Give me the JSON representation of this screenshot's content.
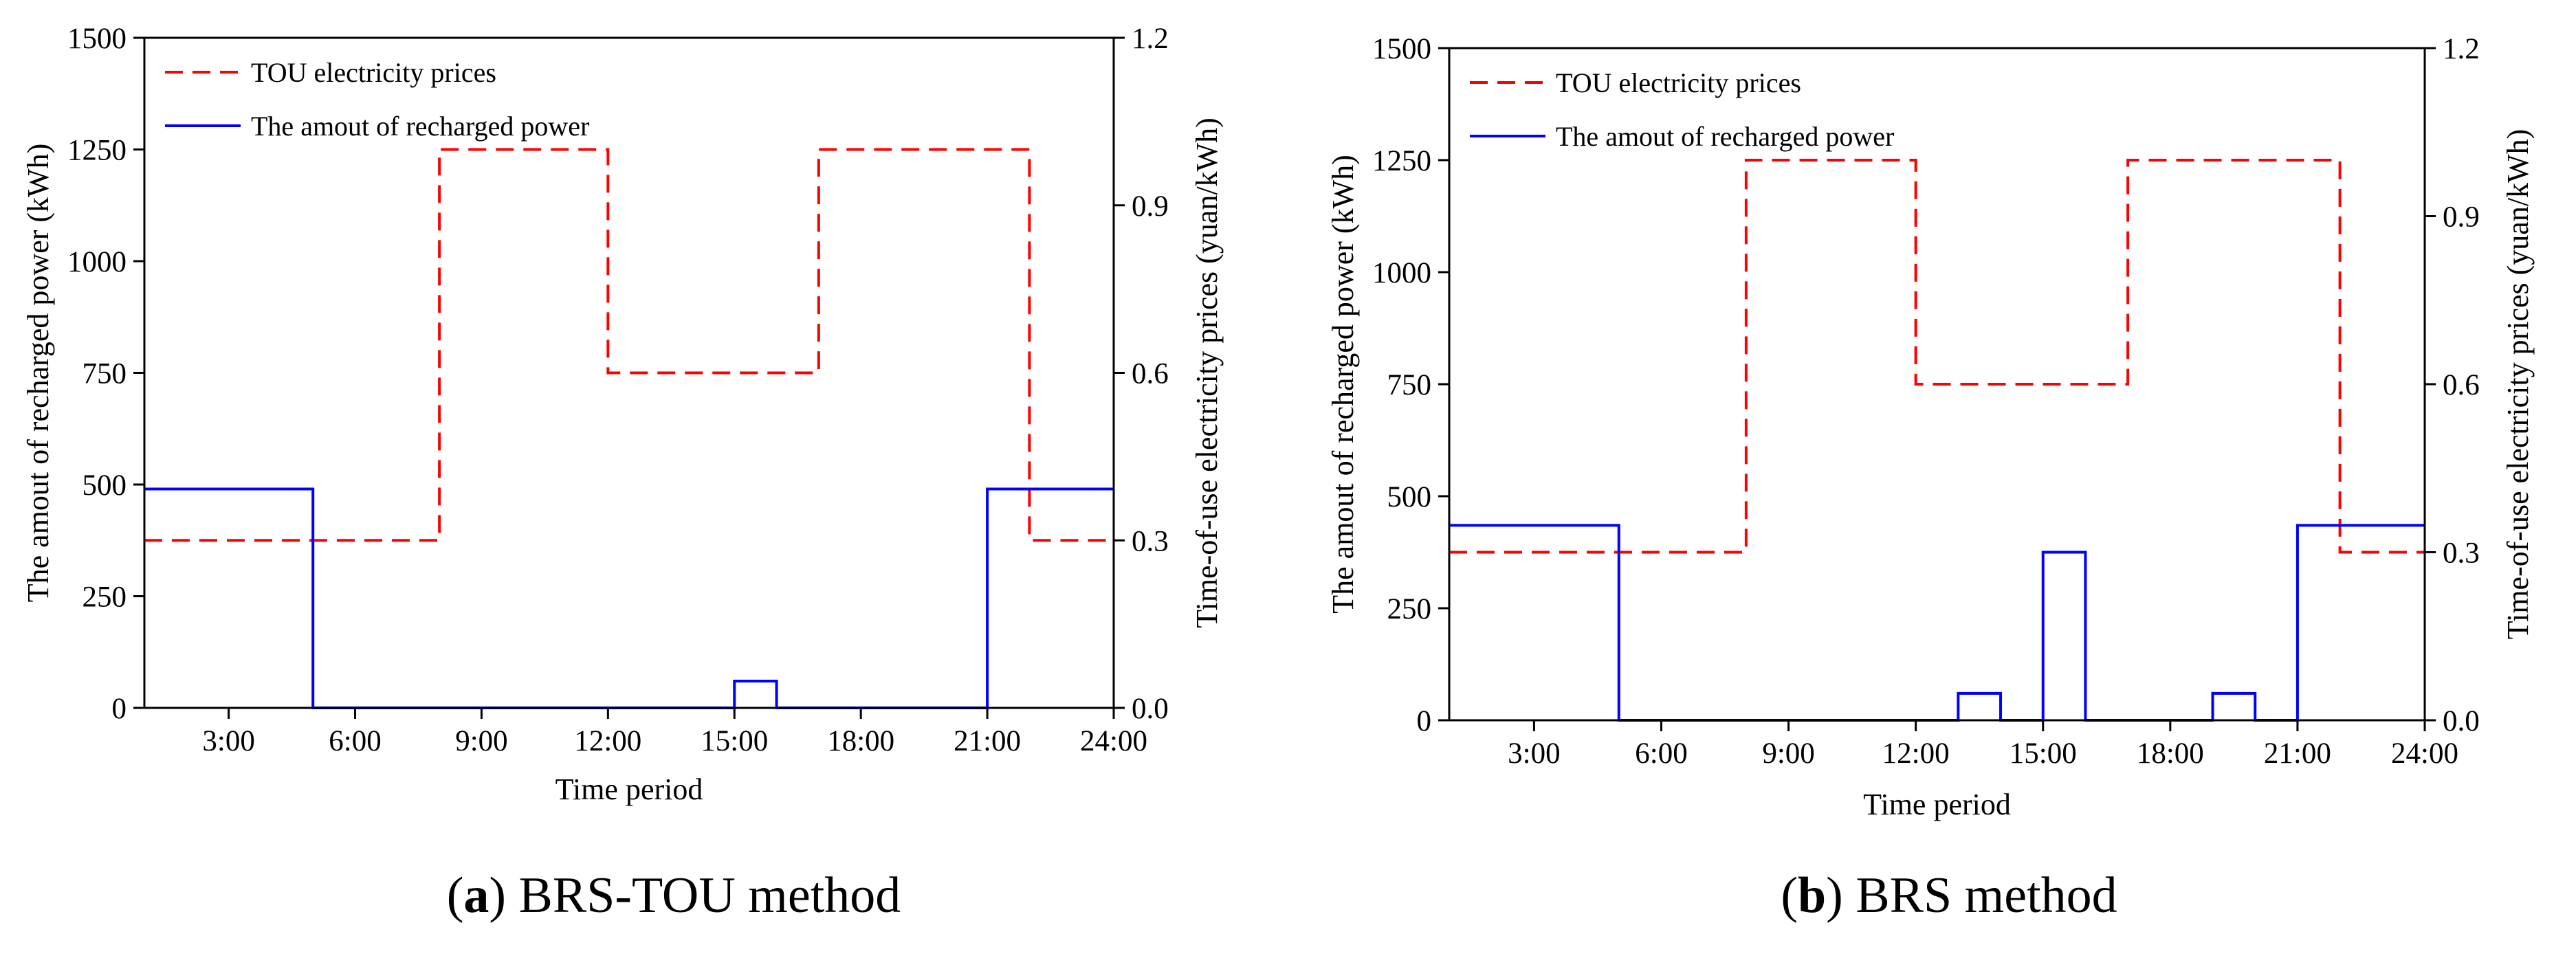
{
  "chart_data": [
    {
      "type": "line",
      "id": "a",
      "caption_letter": "a",
      "caption_text": "BRS-TOU method",
      "xlabel": "Time period",
      "ylabel": "The amout of recharged power (kWh)",
      "ylabel_right": "Time-of-use electricity prices (yuan/kWh)",
      "xlim": [
        1,
        24
      ],
      "ylim": [
        0,
        1500
      ],
      "ylim_right": [
        0,
        1.2
      ],
      "xticks": [
        3,
        6,
        9,
        12,
        15,
        18,
        21,
        24
      ],
      "xtick_labels": [
        "3:00",
        "6:00",
        "9:00",
        "12:00",
        "15:00",
        "18:00",
        "21:00",
        "24:00"
      ],
      "yticks": [
        0,
        250,
        500,
        750,
        1000,
        1250,
        1500
      ],
      "ytick_labels": [
        "0",
        "250",
        "500",
        "750",
        "1000",
        "1250",
        "1500"
      ],
      "yticks_right": [
        0.0,
        0.3,
        0.6,
        0.9,
        1.2
      ],
      "ytick_labels_right": [
        "0.0",
        "0.3",
        "0.6",
        "0.9",
        "1.2"
      ],
      "legend_position": "top-left",
      "series": [
        {
          "name": "TOU electricity prices",
          "axis": "right",
          "style": "dashed",
          "color": "#ff0000",
          "step_x": [
            1,
            8,
            12,
            17,
            22,
            24
          ],
          "step_values": [
            0.3,
            1.0,
            0.6,
            1.0,
            0.3
          ]
        },
        {
          "name": "The amout of recharged power",
          "axis": "left",
          "style": "solid",
          "color": "#0000ff",
          "step_x": [
            1,
            5,
            15,
            16,
            21,
            24
          ],
          "step_values": [
            490,
            0,
            60,
            0,
            490
          ]
        }
      ]
    },
    {
      "type": "line",
      "id": "b",
      "caption_letter": "b",
      "caption_text": "BRS method",
      "xlabel": "Time period",
      "ylabel": "The amout of recharged power (kWh)",
      "ylabel_right": "Time-of-use electricity prices (yuan/kWh)",
      "xlim": [
        1,
        24
      ],
      "ylim": [
        0,
        1500
      ],
      "ylim_right": [
        0,
        1.2
      ],
      "xticks": [
        3,
        6,
        9,
        12,
        15,
        18,
        21,
        24
      ],
      "xtick_labels": [
        "3:00",
        "6:00",
        "9:00",
        "12:00",
        "15:00",
        "18:00",
        "21:00",
        "24:00"
      ],
      "yticks": [
        0,
        250,
        500,
        750,
        1000,
        1250,
        1500
      ],
      "ytick_labels": [
        "0",
        "250",
        "500",
        "750",
        "1000",
        "1250",
        "1500"
      ],
      "yticks_right": [
        0.0,
        0.3,
        0.6,
        0.9,
        1.2
      ],
      "ytick_labels_right": [
        "0.0",
        "0.3",
        "0.6",
        "0.9",
        "1.2"
      ],
      "legend_position": "top-left",
      "series": [
        {
          "name": "TOU electricity prices",
          "axis": "right",
          "style": "dashed",
          "color": "#ff0000",
          "step_x": [
            1,
            8,
            12,
            17,
            22,
            24
          ],
          "step_values": [
            0.3,
            1.0,
            0.6,
            1.0,
            0.3
          ]
        },
        {
          "name": "The amout of recharged power",
          "axis": "left",
          "style": "solid",
          "color": "#0000ff",
          "step_x": [
            1,
            5,
            13,
            14,
            15,
            16,
            19,
            20,
            21,
            24
          ],
          "step_values": [
            435,
            0,
            60,
            0,
            375,
            0,
            60,
            0,
            435
          ]
        }
      ]
    }
  ]
}
